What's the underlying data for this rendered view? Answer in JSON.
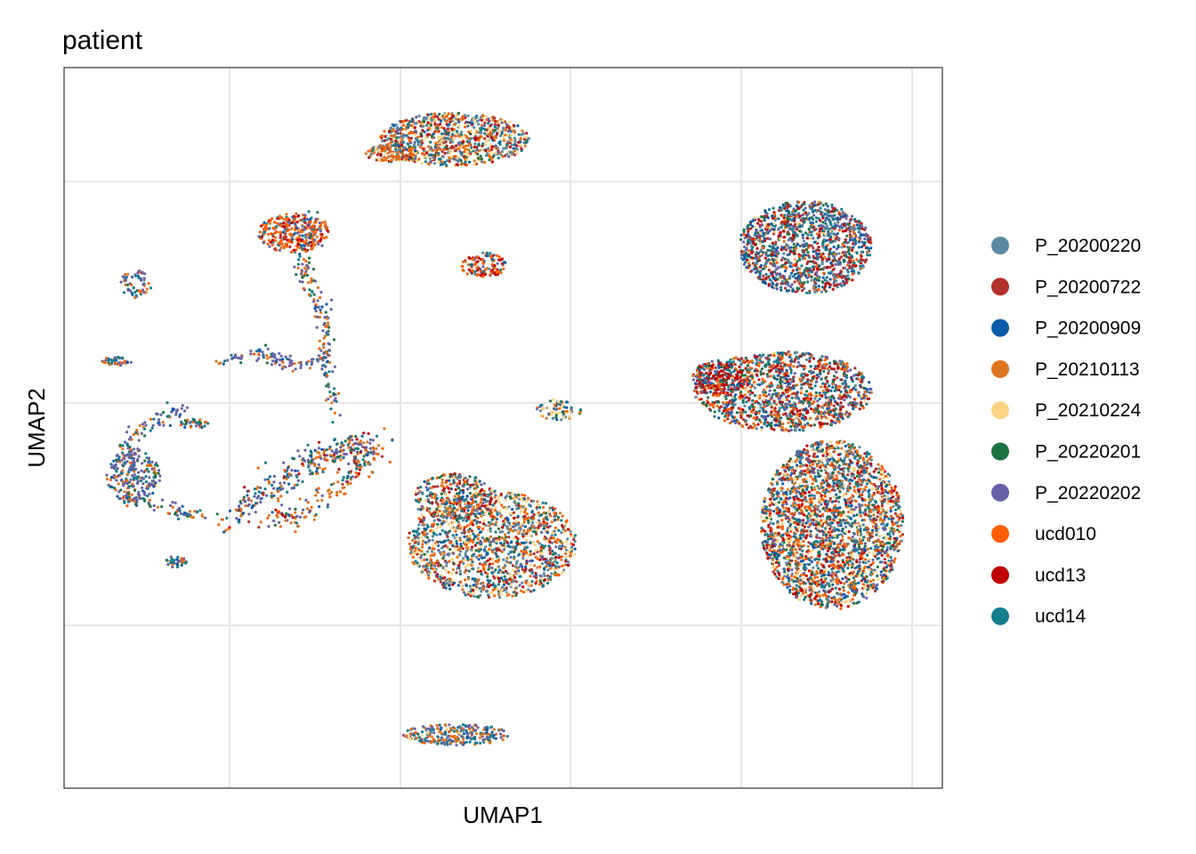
{
  "chart_data": {
    "type": "scatter",
    "title": "patient",
    "xlabel": "UMAP1",
    "ylabel": "UMAP2",
    "grid": true,
    "legend_position": "right",
    "axis_tick_labels_shown": false,
    "series": [
      {
        "name": "P_20200220",
        "color": "#5A8AA1"
      },
      {
        "name": "P_20200722",
        "color": "#B2312A"
      },
      {
        "name": "P_20200909",
        "color": "#0B5BA8"
      },
      {
        "name": "P_20210113",
        "color": "#DD7520"
      },
      {
        "name": "P_20210224",
        "color": "#FCD484"
      },
      {
        "name": "P_20220201",
        "color": "#1E7242"
      },
      {
        "name": "P_20220202",
        "color": "#6661A6"
      },
      {
        "name": "ucd010",
        "color": "#FF5F02"
      },
      {
        "name": "ucd13",
        "color": "#C00003"
      },
      {
        "name": "ucd14",
        "color": "#157D8C"
      }
    ],
    "clusters": [
      {
        "id": "top-center",
        "shape": "ellipse",
        "cx": 510,
        "cy": 157,
        "rx": 85,
        "ry": 30,
        "n": 900,
        "weights": [
          4,
          2,
          1,
          3,
          3,
          1,
          1,
          2,
          2,
          2
        ]
      },
      {
        "id": "top-center-tail",
        "shape": "ellipse",
        "cx": 440,
        "cy": 172,
        "rx": 30,
        "ry": 10,
        "n": 150,
        "weights": [
          1,
          1,
          1,
          4,
          2,
          0,
          0,
          3,
          1,
          1
        ]
      },
      {
        "id": "upper-left-triangle",
        "shape": "ellipse",
        "cx": 330,
        "cy": 262,
        "rx": 40,
        "ry": 22,
        "n": 300,
        "weights": [
          1,
          1,
          1,
          2,
          0,
          0,
          1,
          6,
          2,
          1
        ]
      },
      {
        "id": "small-mid",
        "shape": "ellipse",
        "cx": 543,
        "cy": 298,
        "rx": 26,
        "ry": 14,
        "n": 120,
        "weights": [
          1,
          1,
          1,
          2,
          0,
          0,
          1,
          5,
          3,
          1
        ]
      },
      {
        "id": "small-left-1",
        "shape": "ellipse",
        "cx": 153,
        "cy": 320,
        "rx": 18,
        "ry": 16,
        "n": 60,
        "weights": [
          0,
          0,
          1,
          3,
          0,
          1,
          3,
          2,
          0,
          2
        ]
      },
      {
        "id": "small-left-2",
        "shape": "ellipse",
        "cx": 132,
        "cy": 406,
        "rx": 18,
        "ry": 5,
        "n": 35,
        "weights": [
          0,
          0,
          1,
          2,
          0,
          1,
          3,
          2,
          0,
          2
        ]
      },
      {
        "id": "small-center",
        "shape": "ellipse",
        "cx": 628,
        "cy": 461,
        "rx": 26,
        "ry": 12,
        "n": 70,
        "weights": [
          2,
          0,
          1,
          1,
          4,
          1,
          1,
          1,
          0,
          2
        ]
      },
      {
        "id": "left-arc-cluster",
        "shape": "ellipse",
        "cx": 150,
        "cy": 535,
        "rx": 30,
        "ry": 30,
        "n": 220,
        "weights": [
          0,
          0,
          1,
          2,
          0,
          1,
          6,
          1,
          0,
          2
        ]
      },
      {
        "id": "left-small-bottom",
        "shape": "ellipse",
        "cx": 198,
        "cy": 632,
        "rx": 12,
        "ry": 7,
        "n": 30,
        "weights": [
          0,
          0,
          1,
          1,
          0,
          2,
          3,
          1,
          0,
          2
        ]
      },
      {
        "id": "left-small-top",
        "shape": "ellipse",
        "cx": 218,
        "cy": 476,
        "rx": 16,
        "ry": 6,
        "n": 35,
        "weights": [
          0,
          0,
          1,
          1,
          0,
          2,
          3,
          1,
          0,
          3
        ]
      },
      {
        "id": "center-lower-blob",
        "shape": "ellipse",
        "cx": 553,
        "cy": 612,
        "rx": 95,
        "ry": 60,
        "n": 1400,
        "weights": [
          4,
          2,
          2,
          3,
          4,
          1,
          1,
          3,
          2,
          3
        ]
      },
      {
        "id": "center-lower-blob-upper",
        "shape": "ellipse",
        "cx": 510,
        "cy": 560,
        "rx": 45,
        "ry": 28,
        "n": 300,
        "weights": [
          2,
          2,
          2,
          3,
          2,
          1,
          1,
          3,
          2,
          3
        ]
      },
      {
        "id": "bottom-cluster",
        "shape": "ellipse",
        "cx": 512,
        "cy": 826,
        "rx": 60,
        "ry": 12,
        "n": 260,
        "weights": [
          1,
          0,
          1,
          4,
          1,
          0,
          5,
          1,
          0,
          4
        ]
      },
      {
        "id": "right-top",
        "shape": "ellipse",
        "cx": 905,
        "cy": 278,
        "rx": 75,
        "ry": 52,
        "n": 1300,
        "weights": [
          2,
          3,
          3,
          1,
          1,
          2,
          3,
          1,
          3,
          4
        ]
      },
      {
        "id": "right-mid",
        "shape": "ellipse",
        "cx": 880,
        "cy": 440,
        "rx": 100,
        "ry": 45,
        "n": 1300,
        "weights": [
          2,
          3,
          3,
          2,
          1,
          2,
          2,
          4,
          4,
          4
        ]
      },
      {
        "id": "right-mid-red",
        "shape": "ellipse",
        "cx": 808,
        "cy": 425,
        "rx": 30,
        "ry": 20,
        "n": 200,
        "weights": [
          0,
          2,
          1,
          1,
          0,
          1,
          1,
          1,
          8,
          2
        ]
      },
      {
        "id": "right-bottom",
        "shape": "ellipse",
        "cx": 935,
        "cy": 590,
        "rx": 80,
        "ry": 95,
        "n": 2400,
        "weights": [
          2,
          2,
          3,
          3,
          3,
          2,
          2,
          4,
          3,
          4
        ]
      }
    ],
    "trajectories": [
      {
        "id": "upper-left-stem",
        "points": [
          [
            356,
            240
          ],
          [
            342,
            285
          ],
          [
            345,
            320
          ],
          [
            362,
            345
          ],
          [
            365,
            380
          ],
          [
            368,
            420
          ],
          [
            380,
            470
          ]
        ],
        "n": 160,
        "spread": 5,
        "weights": [
          0,
          0,
          1,
          3,
          0,
          2,
          5,
          2,
          0,
          2
        ]
      },
      {
        "id": "left-branch",
        "points": [
          [
            245,
            406
          ],
          [
            290,
            396
          ],
          [
            320,
            408
          ],
          [
            350,
            410
          ],
          [
            370,
            390
          ]
        ],
        "n": 110,
        "spread": 4,
        "weights": [
          0,
          0,
          1,
          2,
          0,
          1,
          6,
          1,
          0,
          2
        ]
      },
      {
        "id": "left-arc",
        "points": [
          [
            130,
            520
          ],
          [
            160,
            480
          ],
          [
            205,
            462
          ]
        ],
        "n": 80,
        "spread": 5,
        "weights": [
          0,
          0,
          1,
          2,
          0,
          1,
          6,
          1,
          0,
          2
        ]
      },
      {
        "id": "left-arc-lower",
        "points": [
          [
            140,
            560
          ],
          [
            185,
            570
          ],
          [
            230,
            582
          ]
        ],
        "n": 60,
        "spread": 4,
        "weights": [
          0,
          0,
          1,
          2,
          0,
          2,
          5,
          1,
          0,
          2
        ]
      },
      {
        "id": "middle-arc",
        "points": [
          [
            255,
            585
          ],
          [
            300,
            555
          ],
          [
            345,
            520
          ],
          [
            395,
            502
          ],
          [
            430,
            505
          ]
        ],
        "n": 320,
        "spread": 9,
        "weights": [
          0,
          1,
          2,
          4,
          0,
          2,
          6,
          2,
          1,
          3
        ]
      },
      {
        "id": "middle-arc-lower",
        "points": [
          [
            300,
            585
          ],
          [
            340,
            578
          ],
          [
            380,
            545
          ],
          [
            410,
            520
          ]
        ],
        "n": 120,
        "spread": 6,
        "weights": [
          0,
          1,
          1,
          6,
          0,
          1,
          3,
          2,
          1,
          2
        ]
      }
    ]
  },
  "legend": {
    "items": [
      {
        "label": "P_20200220",
        "color": "#5A8AA1"
      },
      {
        "label": "P_20200722",
        "color": "#B2312A"
      },
      {
        "label": "P_20200909",
        "color": "#0B5BA8"
      },
      {
        "label": "P_20210113",
        "color": "#DD7520"
      },
      {
        "label": "P_20210224",
        "color": "#FCD484"
      },
      {
        "label": "P_20220201",
        "color": "#1E7242"
      },
      {
        "label": "P_20220202",
        "color": "#6661A6"
      },
      {
        "label": "ucd010",
        "color": "#FF5F02"
      },
      {
        "label": "ucd13",
        "color": "#C00003"
      },
      {
        "label": "ucd14",
        "color": "#157D8C"
      }
    ]
  }
}
